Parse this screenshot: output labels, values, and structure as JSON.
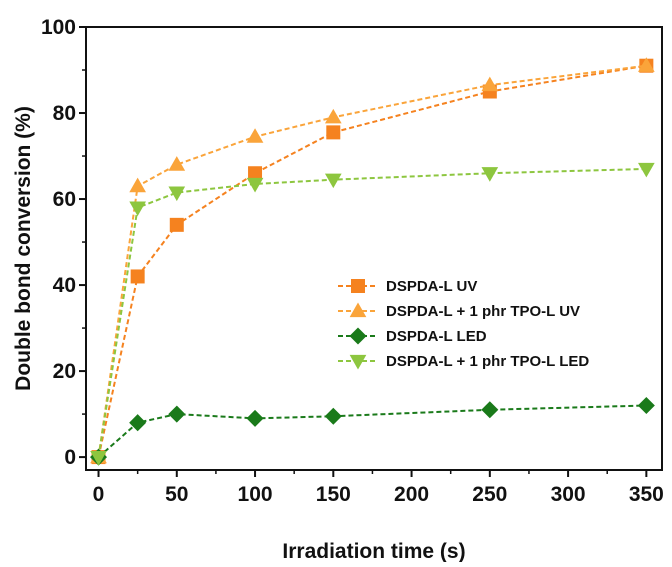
{
  "chart_data": {
    "type": "line",
    "title": "",
    "xlabel": "Irradiation time (s)",
    "ylabel": "Double bond conversion (%)",
    "xlim": [
      -8,
      360
    ],
    "ylim": [
      -3,
      100
    ],
    "xticks": [
      0,
      50,
      100,
      150,
      200,
      250,
      300,
      350
    ],
    "yticks": [
      0,
      20,
      40,
      60,
      80,
      100
    ],
    "grid": false,
    "legend_position": "center-right",
    "series": [
      {
        "name": "DSPDA-L UV",
        "marker": "square",
        "color": "#f5821f",
        "line_style": "dashed",
        "x": [
          0,
          25,
          50,
          100,
          150,
          250,
          350
        ],
        "y": [
          0,
          42,
          54,
          66,
          75.5,
          85,
          91
        ]
      },
      {
        "name": "DSPDA-L + 1 phr TPO-L UV",
        "marker": "triangle-up",
        "color": "#faa43a",
        "line_style": "dashed",
        "x": [
          0,
          25,
          50,
          100,
          150,
          250,
          350
        ],
        "y": [
          0,
          63,
          68,
          74.5,
          79,
          86.5,
          91
        ]
      },
      {
        "name": "DSPDA-L LED",
        "marker": "diamond",
        "color": "#1a7a1a",
        "line_style": "dashed",
        "x": [
          0,
          25,
          50,
          100,
          150,
          250,
          350
        ],
        "y": [
          0,
          8,
          10,
          9,
          9.5,
          11,
          12
        ]
      },
      {
        "name": "DSPDA-L + 1 phr TPO-L LED",
        "marker": "triangle-down",
        "color": "#8dc63f",
        "line_style": "dashed",
        "x": [
          0,
          25,
          50,
          100,
          150,
          250,
          350
        ],
        "y": [
          0,
          58,
          61.5,
          63.5,
          64.5,
          66,
          67
        ]
      }
    ]
  }
}
